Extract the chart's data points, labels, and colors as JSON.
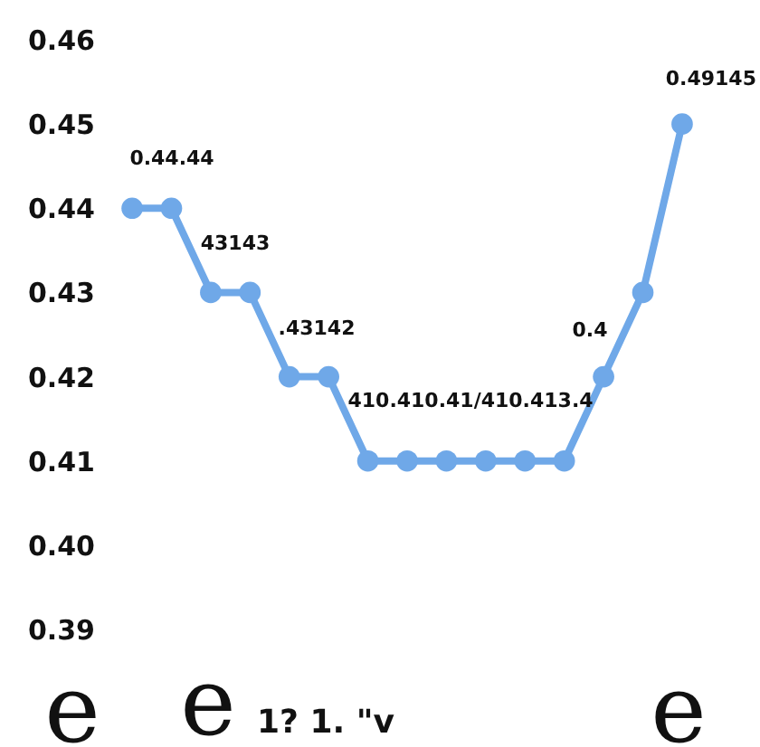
{
  "chart_data": {
    "type": "line",
    "categories": [
      null,
      null,
      null,
      null,
      null,
      null,
      null,
      null,
      null,
      null,
      null,
      null,
      null,
      null,
      null
    ],
    "series": [
      {
        "color": "#6fa8e8",
        "values": [
          0.44,
          0.44,
          0.43,
          0.43,
          0.42,
          0.42,
          0.41,
          0.41,
          0.41,
          0.41,
          0.41,
          0.41,
          0.42,
          0.43,
          0.45
        ]
      }
    ],
    "ylim": [
      0.39,
      0.46
    ],
    "yticks": [
      {
        "value": 0.39,
        "label": "0.39"
      },
      {
        "value": 0.4,
        "label": "0.40"
      },
      {
        "value": 0.41,
        "label": "0.41"
      },
      {
        "value": 0.42,
        "label": "0.42"
      },
      {
        "value": 0.43,
        "label": "0.43"
      },
      {
        "value": 0.44,
        "label": "0.44"
      },
      {
        "value": 0.45,
        "label": "0.45"
      },
      {
        "value": 0.46,
        "label": "0.46"
      }
    ],
    "marker": "circle",
    "grid": false,
    "tick_labels": "y",
    "annotations": [
      "0.44.44",
      "43143",
      ".43142",
      "410.410.41/410.413.4",
      "0.4",
      "0.49145",
      "e",
      "e",
      "1? 1. \"v",
      "e"
    ]
  }
}
